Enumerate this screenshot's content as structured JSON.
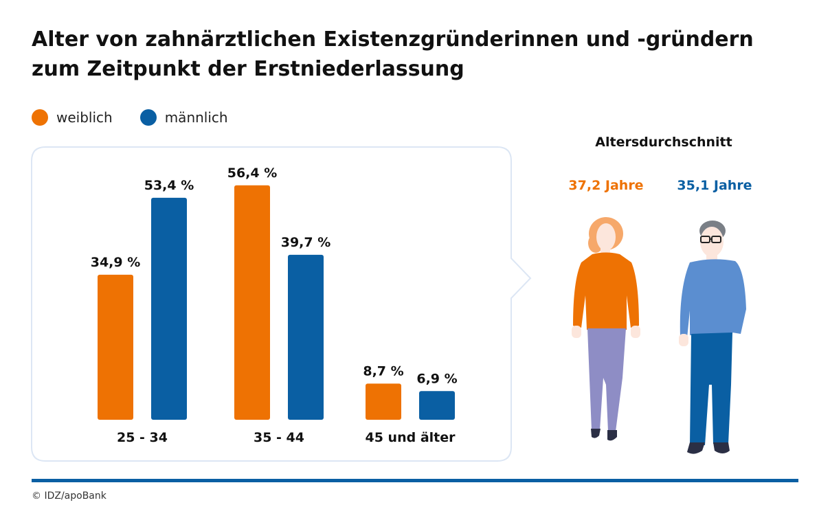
{
  "title": {
    "line1": "Alter von zahnärztlichen Existenzgründerinnen und -gründern",
    "line2": "zum Zeitpunkt der Erstniederlassung"
  },
  "legend": {
    "female_label": "weiblich",
    "male_label": "männlich"
  },
  "colors": {
    "female": "#EE7203",
    "male": "#0A5FA3",
    "male_shirt": "#5B8ED0",
    "female_pants": "#8E8DC5",
    "panel_border": "#DCE6F4",
    "footer_line": "#0A5FA3"
  },
  "chart_data": {
    "type": "bar",
    "categories": [
      "25 - 34",
      "35 - 44",
      "45 und älter"
    ],
    "series": [
      {
        "name": "weiblich",
        "values": [
          34.9,
          56.4,
          8.7
        ],
        "labels": [
          "34,9 %",
          "56,4 %",
          "8,7 %"
        ]
      },
      {
        "name": "männlich",
        "values": [
          53.4,
          39.7,
          6.9
        ],
        "labels": [
          "53,4 %",
          "39,7 %",
          "6,9 %"
        ]
      }
    ],
    "ylim": [
      0,
      60
    ],
    "grid": false,
    "legend_position": "top-left"
  },
  "average": {
    "title": "Altersdurchschnitt",
    "female": "37,2 Jahre",
    "male": "35,1 Jahre"
  },
  "credit": "© IDZ/apoBank"
}
